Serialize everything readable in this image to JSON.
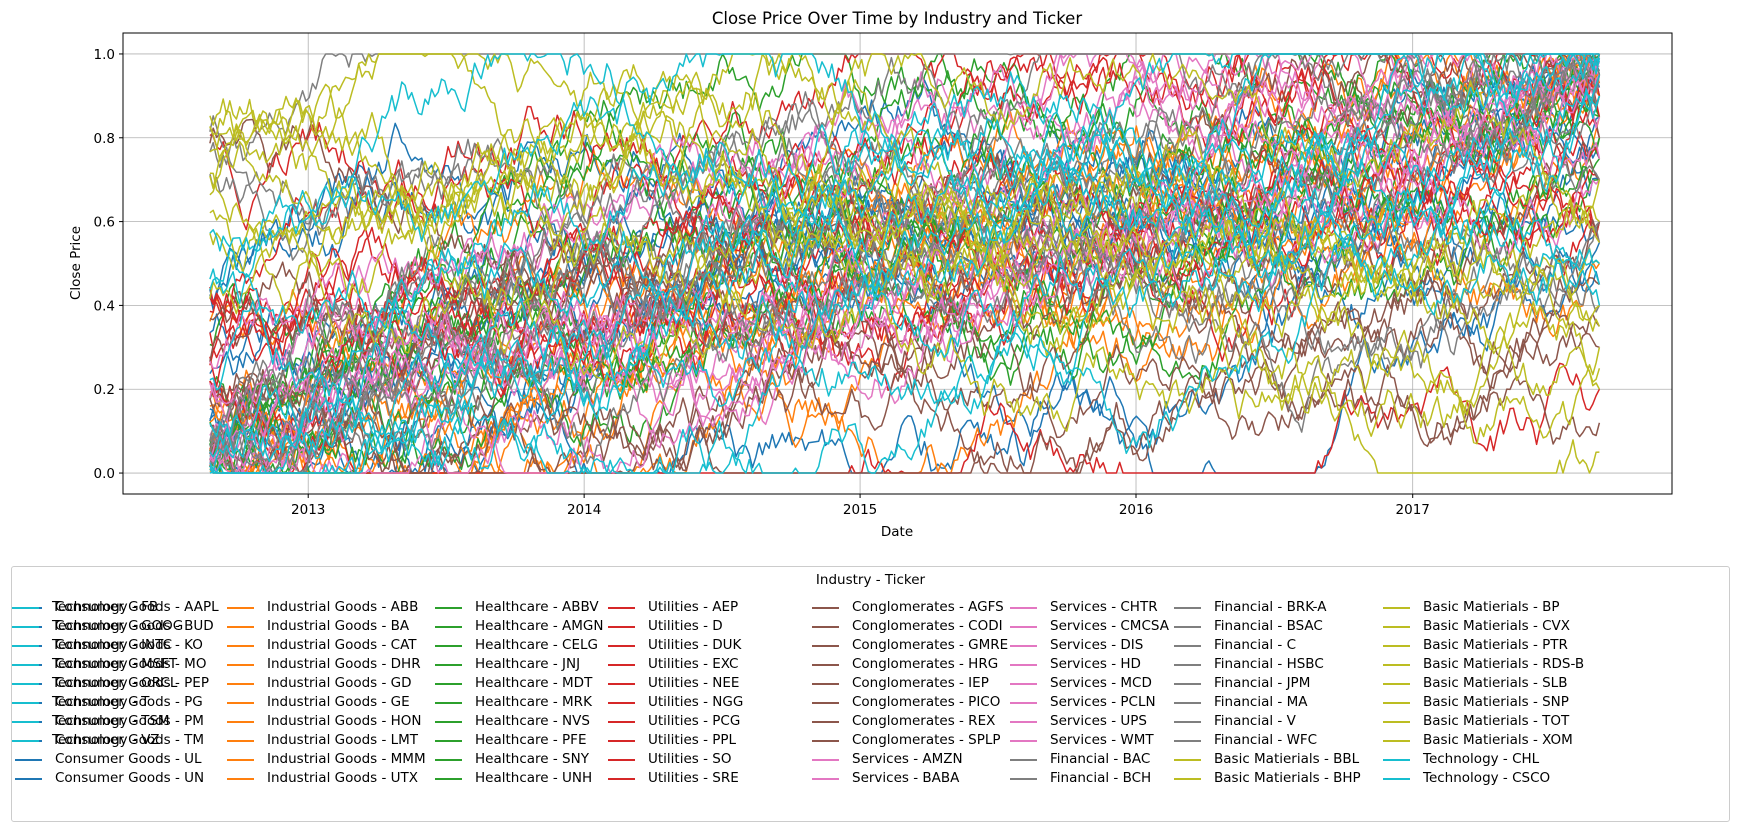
{
  "chart_data": {
    "type": "line",
    "title": "Close Price Over Time by Industry and Ticker",
    "xlabel": "Date",
    "ylabel": "Close Price",
    "x_ticks": [
      "2013",
      "2014",
      "2015",
      "2016",
      "2017"
    ],
    "y_ticks": [
      "0.0",
      "0.2",
      "0.4",
      "0.6",
      "0.8",
      "1.0"
    ],
    "xlim": [
      "2012-05-01",
      "2017-12-10"
    ],
    "ylim": [
      -0.05,
      1.05
    ],
    "x_range": [
      "2012-08-24",
      "2017-09-05"
    ],
    "grid": true,
    "legend": {
      "title": "Industry - Ticker",
      "placement": "bottom-center",
      "columns": 8
    },
    "industry_colors": {
      "Consumer Goods": "#1f77b4",
      "Industrial Goods": "#ff7f0e",
      "Healthcare": "#2ca02c",
      "Utilities": "#d62728",
      "Conglomerates": "#8c564b",
      "Services": "#e377c2",
      "Financial": "#7f7f7f",
      "Basic Matierials": "#bcbd22",
      "Technology": "#17becf"
    },
    "series": [
      {
        "name": "Consumer Goods - AAPL",
        "industry": "Consumer Goods",
        "start": 0.1,
        "end": 0.95
      },
      {
        "name": "Consumer Goods - BUD",
        "industry": "Consumer Goods",
        "start": 0.3,
        "end": 0.55
      },
      {
        "name": "Consumer Goods - KO",
        "industry": "Consumer Goods",
        "start": 0.15,
        "end": 0.85
      },
      {
        "name": "Consumer Goods - MO",
        "industry": "Consumer Goods",
        "start": 0.05,
        "end": 0.7
      },
      {
        "name": "Consumer Goods - PEP",
        "industry": "Consumer Goods",
        "start": 0.05,
        "end": 0.92
      },
      {
        "name": "Consumer Goods - PG",
        "industry": "Consumer Goods",
        "start": 0.2,
        "end": 0.6
      },
      {
        "name": "Consumer Goods - PM",
        "industry": "Consumer Goods",
        "start": 0.4,
        "end": 0.45
      },
      {
        "name": "Consumer Goods - TM",
        "industry": "Consumer Goods",
        "start": 0.45,
        "end": 0.75
      },
      {
        "name": "Consumer Goods - UL",
        "industry": "Consumer Goods",
        "start": 0.12,
        "end": 0.98
      },
      {
        "name": "Consumer Goods - UN",
        "industry": "Consumer Goods",
        "start": 0.1,
        "end": 0.96
      },
      {
        "name": "Industrial Goods - ABB",
        "industry": "Industrial Goods",
        "start": 0.15,
        "end": 0.9
      },
      {
        "name": "Industrial Goods - BA",
        "industry": "Industrial Goods",
        "start": 0.02,
        "end": 1.0
      },
      {
        "name": "Industrial Goods - CAT",
        "industry": "Industrial Goods",
        "start": 0.35,
        "end": 0.95
      },
      {
        "name": "Industrial Goods - DHR",
        "industry": "Industrial Goods",
        "start": 0.05,
        "end": 0.9
      },
      {
        "name": "Industrial Goods - GD",
        "industry": "Industrial Goods",
        "start": 0.05,
        "end": 0.95
      },
      {
        "name": "Industrial Goods - GE",
        "industry": "Industrial Goods",
        "start": 0.2,
        "end": 0.5
      },
      {
        "name": "Industrial Goods - HON",
        "industry": "Industrial Goods",
        "start": 0.05,
        "end": 0.93
      },
      {
        "name": "Industrial Goods - LMT",
        "industry": "Industrial Goods",
        "start": 0.02,
        "end": 1.0
      },
      {
        "name": "Industrial Goods - MMM",
        "industry": "Industrial Goods",
        "start": 0.05,
        "end": 0.95
      },
      {
        "name": "Industrial Goods - UTX",
        "industry": "Industrial Goods",
        "start": 0.2,
        "end": 0.85
      },
      {
        "name": "Healthcare - ABBV",
        "industry": "Healthcare",
        "start": 0.1,
        "end": 0.9
      },
      {
        "name": "Healthcare - AMGN",
        "industry": "Healthcare",
        "start": 0.05,
        "end": 0.8
      },
      {
        "name": "Healthcare - CELG",
        "industry": "Healthcare",
        "start": 0.05,
        "end": 0.85
      },
      {
        "name": "Healthcare - JNJ",
        "industry": "Healthcare",
        "start": 0.05,
        "end": 0.95
      },
      {
        "name": "Healthcare - MDT",
        "industry": "Healthcare",
        "start": 0.05,
        "end": 0.85
      },
      {
        "name": "Healthcare - MRK",
        "industry": "Healthcare",
        "start": 0.1,
        "end": 0.8
      },
      {
        "name": "Healthcare - NVS",
        "industry": "Healthcare",
        "start": 0.2,
        "end": 0.75
      },
      {
        "name": "Healthcare - PFE",
        "industry": "Healthcare",
        "start": 0.1,
        "end": 0.85
      },
      {
        "name": "Healthcare - SNY",
        "industry": "Healthcare",
        "start": 0.3,
        "end": 0.7
      },
      {
        "name": "Healthcare - UNH",
        "industry": "Healthcare",
        "start": 0.02,
        "end": 1.0
      },
      {
        "name": "Utilities - AEP",
        "industry": "Utilities",
        "start": 0.4,
        "end": 0.9
      },
      {
        "name": "Utilities - D",
        "industry": "Utilities",
        "start": 0.3,
        "end": 0.85
      },
      {
        "name": "Utilities - DUK",
        "industry": "Utilities",
        "start": 0.35,
        "end": 0.8
      },
      {
        "name": "Utilities - EXC",
        "industry": "Utilities",
        "start": 0.45,
        "end": 0.6
      },
      {
        "name": "Utilities - NEE",
        "industry": "Utilities",
        "start": 0.05,
        "end": 1.0
      },
      {
        "name": "Utilities - NGG",
        "industry": "Utilities",
        "start": 0.3,
        "end": 0.55
      },
      {
        "name": "Utilities - PCG",
        "industry": "Utilities",
        "start": 0.2,
        "end": 0.2
      },
      {
        "name": "Utilities - PPL",
        "industry": "Utilities",
        "start": 0.25,
        "end": 0.7
      },
      {
        "name": "Utilities - SO",
        "industry": "Utilities",
        "start": 0.8,
        "end": 0.6
      },
      {
        "name": "Utilities - SRE",
        "industry": "Utilities",
        "start": 0.2,
        "end": 0.75
      },
      {
        "name": "Conglomerates - AGFS",
        "industry": "Conglomerates",
        "start": 0.1,
        "end": 0.12
      },
      {
        "name": "Conglomerates - CODI",
        "industry": "Conglomerates",
        "start": 0.2,
        "end": 0.6
      },
      {
        "name": "Conglomerates - GMRE",
        "industry": "Conglomerates",
        "start": 0.4,
        "end": 0.35
      },
      {
        "name": "Conglomerates - HRG",
        "industry": "Conglomerates",
        "start": 0.05,
        "end": 0.8
      },
      {
        "name": "Conglomerates - IEP",
        "industry": "Conglomerates",
        "start": 0.3,
        "end": 0.3
      },
      {
        "name": "Conglomerates - PICO",
        "industry": "Conglomerates",
        "start": 0.75,
        "end": 0.45
      },
      {
        "name": "Conglomerates - REX",
        "industry": "Conglomerates",
        "start": 0.05,
        "end": 0.9
      },
      {
        "name": "Conglomerates - SPLP",
        "industry": "Conglomerates",
        "start": 0.2,
        "end": 0.7
      },
      {
        "name": "Services - AMZN",
        "industry": "Services",
        "start": 0.02,
        "end": 1.0
      },
      {
        "name": "Services - BABA",
        "industry": "Services",
        "start": 0.2,
        "end": 0.95
      },
      {
        "name": "Services - CHTR",
        "industry": "Services",
        "start": 0.02,
        "end": 0.98
      },
      {
        "name": "Services - CMCSA",
        "industry": "Services",
        "start": 0.05,
        "end": 0.95
      },
      {
        "name": "Services - DIS",
        "industry": "Services",
        "start": 0.05,
        "end": 0.7
      },
      {
        "name": "Services - HD",
        "industry": "Services",
        "start": 0.02,
        "end": 0.97
      },
      {
        "name": "Services - MCD",
        "industry": "Services",
        "start": 0.2,
        "end": 0.99
      },
      {
        "name": "Services - PCLN",
        "industry": "Services",
        "start": 0.05,
        "end": 0.95
      },
      {
        "name": "Services - UPS",
        "industry": "Services",
        "start": 0.1,
        "end": 0.85
      },
      {
        "name": "Services - WMT",
        "industry": "Services",
        "start": 0.3,
        "end": 0.75
      },
      {
        "name": "Financial - BAC",
        "industry": "Financial",
        "start": 0.05,
        "end": 0.95
      },
      {
        "name": "Financial - BCH",
        "industry": "Financial",
        "start": 0.85,
        "end": 0.4
      },
      {
        "name": "Financial - BRK-A",
        "industry": "Financial",
        "start": 0.05,
        "end": 0.95
      },
      {
        "name": "Financial - BSAC",
        "industry": "Financial",
        "start": 0.8,
        "end": 0.7
      },
      {
        "name": "Financial - C",
        "industry": "Financial",
        "start": 0.1,
        "end": 0.9
      },
      {
        "name": "Financial - HSBC",
        "industry": "Financial",
        "start": 0.7,
        "end": 0.55
      },
      {
        "name": "Financial - JPM",
        "industry": "Financial",
        "start": 0.05,
        "end": 0.95
      },
      {
        "name": "Financial - MA",
        "industry": "Financial",
        "start": 0.02,
        "end": 1.0
      },
      {
        "name": "Financial - V",
        "industry": "Financial",
        "start": 0.02,
        "end": 0.99
      },
      {
        "name": "Financial - WFC",
        "industry": "Financial",
        "start": 0.1,
        "end": 0.6
      },
      {
        "name": "Basic Matierials - BBL",
        "industry": "Basic Matierials",
        "start": 0.8,
        "end": 0.3
      },
      {
        "name": "Basic Matierials - BHP",
        "industry": "Basic Matierials",
        "start": 0.85,
        "end": 0.25
      },
      {
        "name": "Basic Matierials - BP",
        "industry": "Basic Matierials",
        "start": 0.75,
        "end": 0.4
      },
      {
        "name": "Basic Matierials - CVX",
        "industry": "Basic Matierials",
        "start": 0.7,
        "end": 0.55
      },
      {
        "name": "Basic Matierials - PTR",
        "industry": "Basic Matierials",
        "start": 0.8,
        "end": 0.05
      },
      {
        "name": "Basic Matierials - RDS-B",
        "industry": "Basic Matierials",
        "start": 0.65,
        "end": 0.6
      },
      {
        "name": "Basic Matierials - SLB",
        "industry": "Basic Matierials",
        "start": 0.45,
        "end": 0.35
      },
      {
        "name": "Basic Matierials - SNP",
        "industry": "Basic Matierials",
        "start": 0.55,
        "end": 0.7
      },
      {
        "name": "Basic Matierials - TOT",
        "industry": "Basic Matierials",
        "start": 0.6,
        "end": 0.5
      },
      {
        "name": "Basic Matierials - XOM",
        "industry": "Basic Matierials",
        "start": 0.85,
        "end": 0.2
      },
      {
        "name": "Technology - CHL",
        "industry": "Technology",
        "start": 0.6,
        "end": 0.45
      },
      {
        "name": "Technology - CSCO",
        "industry": "Technology",
        "start": 0.05,
        "end": 0.9
      },
      {
        "name": "Technology - FB",
        "industry": "Technology",
        "start": 0.02,
        "end": 1.0
      },
      {
        "name": "Technology - GOOG",
        "industry": "Technology",
        "start": 0.05,
        "end": 0.98
      },
      {
        "name": "Technology - INTC",
        "industry": "Technology",
        "start": 0.1,
        "end": 0.95
      },
      {
        "name": "Technology - MSFT",
        "industry": "Technology",
        "start": 0.02,
        "end": 1.0
      },
      {
        "name": "Technology - ORCL",
        "industry": "Technology",
        "start": 0.2,
        "end": 0.9
      },
      {
        "name": "Technology - T",
        "industry": "Technology",
        "start": 0.4,
        "end": 0.5
      },
      {
        "name": "Technology - TSM",
        "industry": "Technology",
        "start": 0.05,
        "end": 0.99
      },
      {
        "name": "Technology - VZ",
        "industry": "Technology",
        "start": 0.45,
        "end": 0.4
      }
    ]
  }
}
